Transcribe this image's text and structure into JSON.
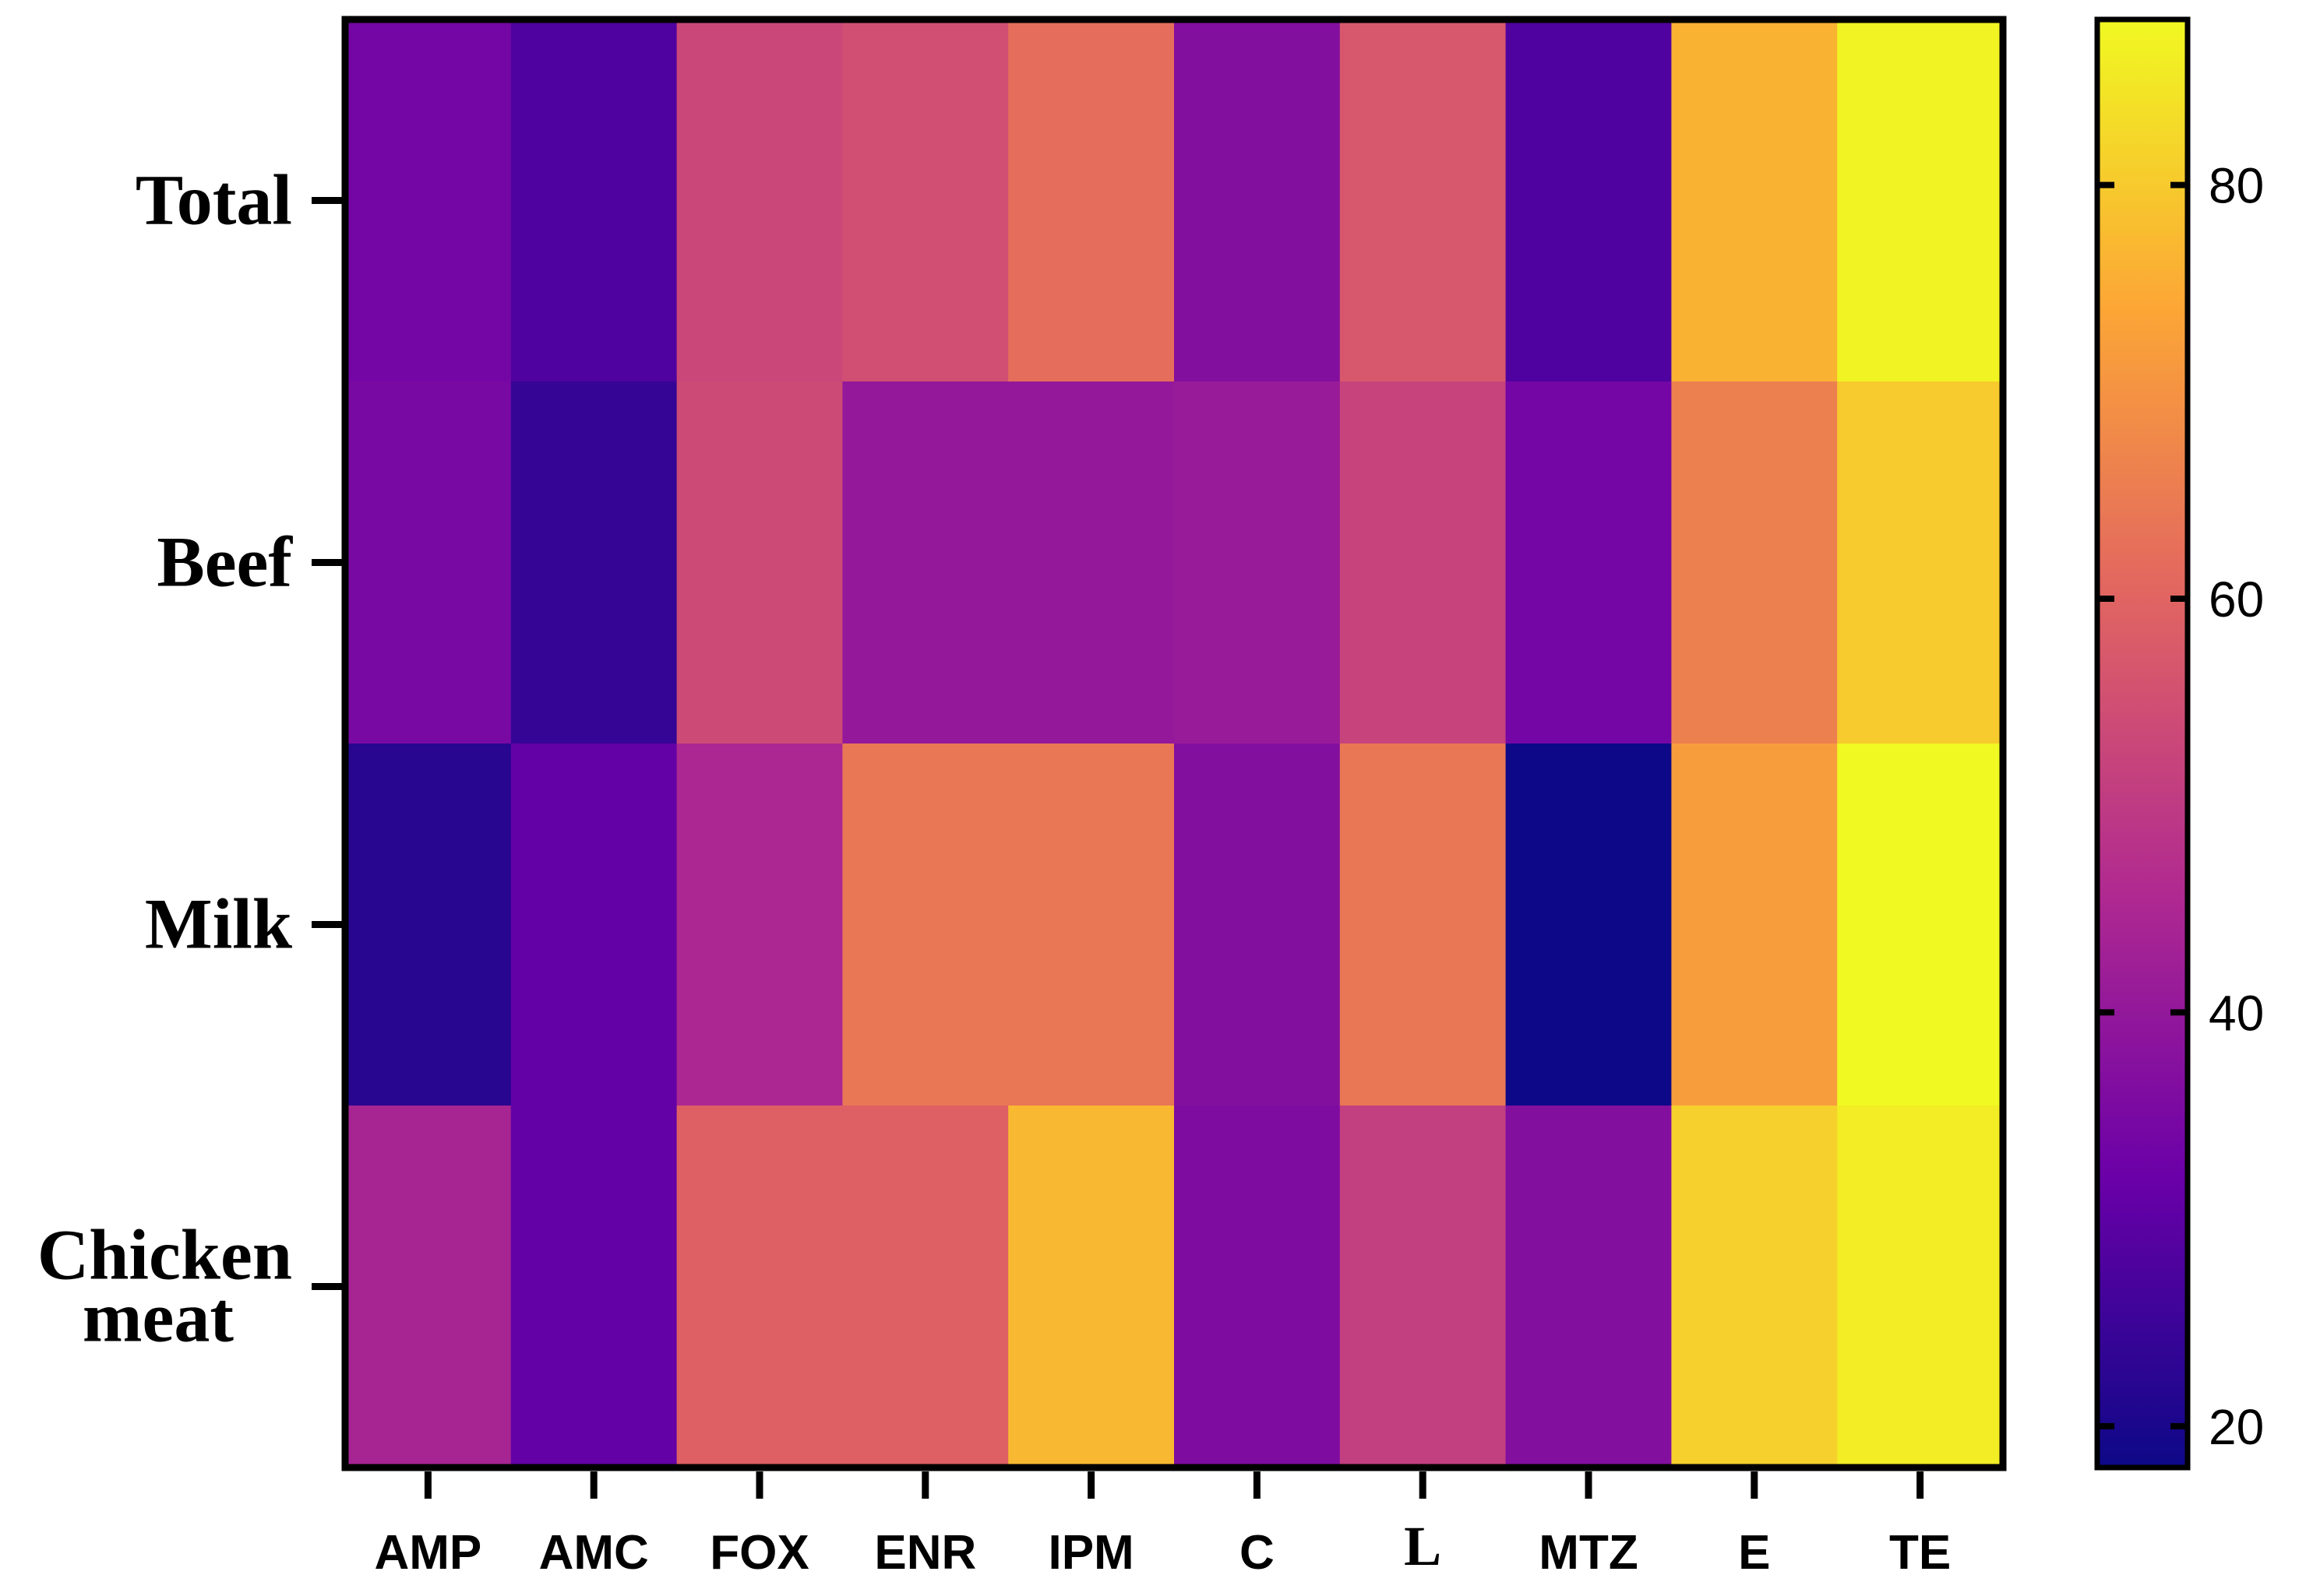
{
  "chart_data": {
    "type": "heatmap",
    "columns": [
      "AMP",
      "AMC",
      "FOX",
      "ENR",
      "IPM",
      "C",
      "L",
      "MTZ",
      "E",
      "TE"
    ],
    "rows": [
      "Total",
      "Beef",
      "Milk",
      "Chicken meat"
    ],
    "row_label_lines": [
      [
        "Total"
      ],
      [
        "Beef"
      ],
      [
        "Milk"
      ],
      [
        "Chicken",
        "meat"
      ]
    ],
    "values": [
      [
        34,
        28,
        53,
        55,
        62,
        37,
        57,
        28,
        76,
        87
      ],
      [
        35,
        24,
        54,
        40,
        40,
        41,
        52,
        34,
        66,
        80
      ],
      [
        22,
        31,
        45,
        64,
        64,
        37,
        64,
        14,
        72,
        90
      ],
      [
        44,
        31,
        59,
        59,
        77,
        36,
        51,
        37,
        81,
        86
      ]
    ],
    "colorbar": {
      "min": 18,
      "max": 88,
      "ticks": [
        20,
        40,
        60,
        80
      ],
      "stops": [
        "#0d0887",
        "#6a00a8",
        "#b12a90",
        "#e16462",
        "#fca636",
        "#f0f921"
      ]
    },
    "title": "",
    "xlabel": "",
    "ylabel": ""
  }
}
